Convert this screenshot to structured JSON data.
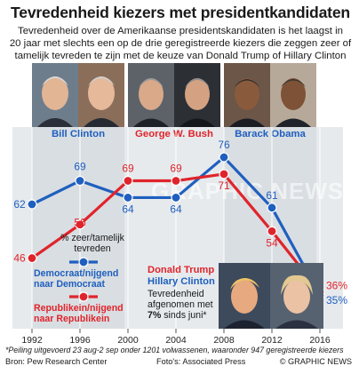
{
  "title": "Tevredenheid kiezers met presidentkandidaten",
  "subtitle_lines": [
    "Tevredenheid over de Amerikaanse presidentskandidaten is het laagst in",
    "20 jaar met slechts een op de drie geregistreerde kiezers die zeggen zeer of",
    "tamelijk tevreden te zijn met de keuze van Donald Trump of Hillary Clinton"
  ],
  "presidents": [
    "Bill Clinton",
    "George W. Bush",
    "Barack Obama"
  ],
  "colors": {
    "dem": "#1f5fbf",
    "rep": "#e0242b",
    "band": "#d9dee2",
    "panel": "#e6eaed"
  },
  "legend": {
    "measure_line1": "% zeer/tamelijk",
    "measure_line2": "tevreden",
    "dem_line1": "Democraat/nijgend",
    "dem_line2": "naar Democraat",
    "rep_line1": "Republikein/nijgend",
    "rep_line2": "naar Republikein"
  },
  "annotation": {
    "trump": "Donald Trump",
    "clinton": "Hillary Clinton",
    "line1": "Tevredenheid",
    "line2": "afgenomen met",
    "pct": "7%",
    "line3_rest": " sinds juni*"
  },
  "footnote": "*Peiling uitgevoerd 23 aug-2 sep onder 1201 volwassenen, waaronder 947 geregistreerde kiezers",
  "source": "Bron: Pew Research Center",
  "photo_credit": "Foto's: Associated Press",
  "copyright": "© GRAPHIC NEWS",
  "watermark": "GRAPHIC NEWS",
  "chart_data": {
    "type": "line",
    "x": [
      1992,
      1996,
      2000,
      2004,
      2008,
      2012,
      2016
    ],
    "ylabel": "% zeer/tamelijk tevreden",
    "series": [
      {
        "name": "Democraat/nijgend naar Democraat",
        "values": [
          62,
          69,
          64,
          64,
          76,
          61,
          35
        ]
      },
      {
        "name": "Republikein/nijgend naar Republikein",
        "values": [
          46,
          56,
          69,
          69,
          71,
          54,
          36
        ]
      }
    ],
    "data_labels_dem": [
      "62",
      "69",
      "64",
      "64",
      "76",
      "61",
      "35%"
    ],
    "data_labels_rep": [
      "46",
      "56",
      "69",
      "69",
      "71",
      "54",
      "36%"
    ],
    "x_tick_labels": [
      "1992",
      "1996",
      "2000",
      "2004",
      "2008",
      "2012",
      "2016"
    ],
    "ylim": [
      25,
      85
    ],
    "grid": false
  }
}
